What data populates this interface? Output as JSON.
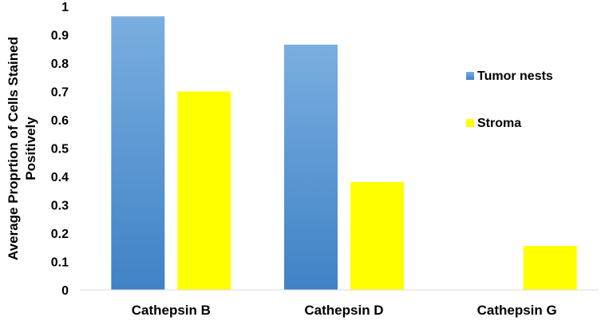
{
  "chart_data": {
    "type": "bar",
    "title": "",
    "xlabel": "",
    "ylabel_lines": [
      "Average Proprtion of Cells Stained",
      "Positively"
    ],
    "categories": [
      "Cathepsin B",
      "Cathepsin D",
      "Cathepsin G"
    ],
    "series": [
      {
        "name": "Tumor nests",
        "values": [
          0.965,
          0.865,
          0
        ],
        "color": "#5b9bd5"
      },
      {
        "name": "Stroma",
        "values": [
          0.7,
          0.38,
          0.155
        ],
        "color": "#ffff00"
      }
    ],
    "yticks": [
      "0",
      "0.1",
      "0.2",
      "0.3",
      "0.4",
      "0.5",
      "0.6",
      "0.7",
      "0.8",
      "0.9",
      "1"
    ],
    "ylim": [
      0,
      1
    ],
    "grid": false,
    "legend": "right"
  }
}
